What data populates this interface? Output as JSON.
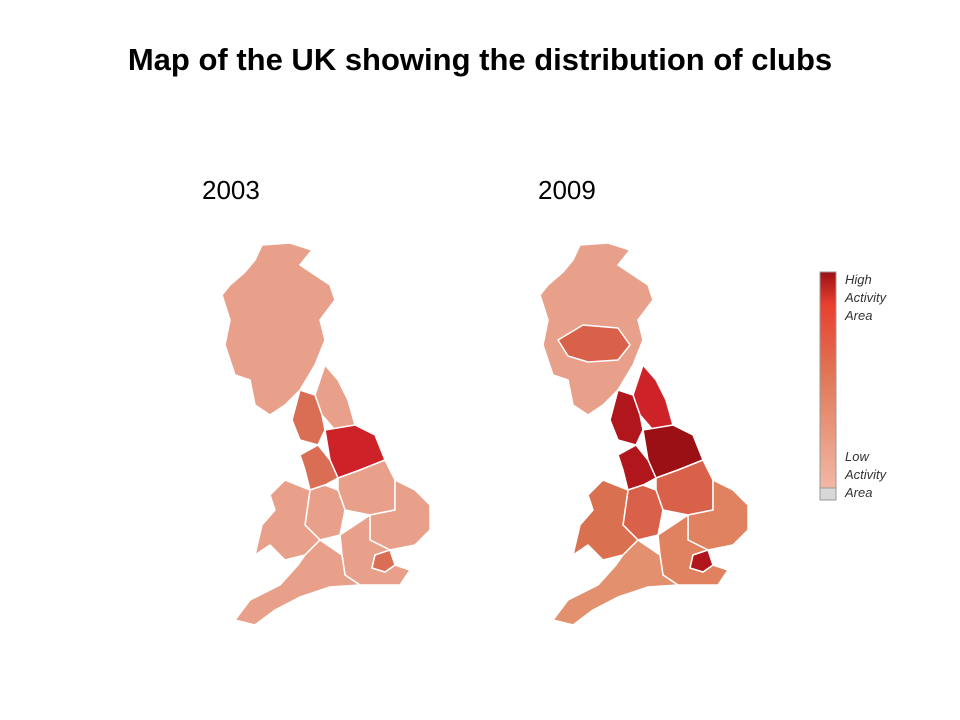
{
  "title": "Map of the UK showing the distribution of clubs",
  "maps": [
    {
      "label": "2003"
    },
    {
      "label": "2009"
    }
  ],
  "legend": {
    "high": [
      "High",
      "Activity",
      "Area"
    ],
    "low": [
      "Low",
      "Activity",
      "Area"
    ]
  }
}
